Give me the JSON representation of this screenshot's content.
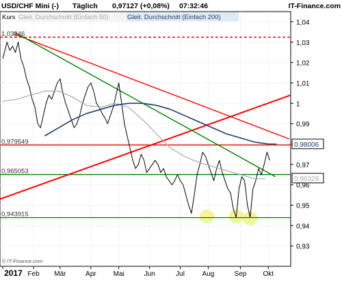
{
  "header": {
    "instrument": "USD/CHF Mini (-)",
    "interval": "Täglich",
    "last_value": "0,97127",
    "change": "(+0,08%)",
    "time": "07:32:46",
    "brand": "IT-Finance.com"
  },
  "legend": {
    "kurs": "Kurs",
    "sma50": "Gleit. Durchschnitt (Einfach 50)",
    "sma200": "Gleit. Durchschnitt (Einfach 200)"
  },
  "footer": {
    "copyright": "© IT-Finance.com",
    "year": "2017"
  },
  "colors": {
    "price": "#000000",
    "sma50": "#a9a9a9",
    "sma200": "#1f3a6e",
    "downtrend_red": "#ff0000",
    "uptrend_red": "#ff0000",
    "green_trend": "#008000",
    "horizontal_red": "#ff0000",
    "horizontal_green": "#008000",
    "dashed_top": "#cc0000",
    "highlight": "#f2f28a",
    "axis_bg": "#ffffff",
    "current_label_box": "#000000"
  },
  "chart_data": {
    "type": "line",
    "title": "USD/CHF Mini (-)",
    "xlabel": "",
    "ylabel": "",
    "ylim": [
      0.92,
      1.045
    ],
    "yticks": [
      {
        "v": 1.04,
        "label": "1,04"
      },
      {
        "v": 1.03,
        "label": "1,03"
      },
      {
        "v": 1.02,
        "label": "1,02"
      },
      {
        "v": 1.01,
        "label": "1,01"
      },
      {
        "v": 1.0,
        "label": "1"
      },
      {
        "v": 0.99,
        "label": "0,99"
      },
      {
        "v": 0.98,
        "label": "0,98"
      },
      {
        "v": 0.97,
        "label": "0,97"
      },
      {
        "v": 0.96,
        "label": "0,96"
      },
      {
        "v": 0.95,
        "label": "0,95"
      },
      {
        "v": 0.94,
        "label": "0,94"
      },
      {
        "v": 0.93,
        "label": "0,93"
      }
    ],
    "xticks": [
      {
        "t": 0,
        "label": "2017"
      },
      {
        "t": 22,
        "label": "Feb"
      },
      {
        "t": 41,
        "label": "Mär"
      },
      {
        "t": 63,
        "label": "Apr"
      },
      {
        "t": 83,
        "label": "Mai"
      },
      {
        "t": 105,
        "label": "Jun"
      },
      {
        "t": 127,
        "label": "Jul"
      },
      {
        "t": 147,
        "label": "Aug"
      },
      {
        "t": 170,
        "label": "Sep"
      },
      {
        "t": 190,
        "label": "Okt"
      }
    ],
    "t_range": [
      -2,
      206
    ],
    "current_values": [
      {
        "name": "sma200",
        "value": 0.98006,
        "label": "0,98006"
      },
      {
        "name": "sma50",
        "value": 0.96329,
        "label": "0,96329"
      }
    ],
    "levels": [
      {
        "value": 1.03246,
        "label": "1,03246",
        "style": "dashed-red"
      },
      {
        "value": 0.979549,
        "label": "0,979549",
        "style": "red"
      },
      {
        "value": 0.965053,
        "label": "0,965053",
        "style": "green"
      },
      {
        "value": 0.943915,
        "label": "0,943915",
        "style": "green"
      }
    ],
    "trendlines": [
      {
        "name": "downtrend-red",
        "t0": 8,
        "v0": 1.034,
        "t1": 205,
        "v1": 0.9825
      },
      {
        "name": "uptrend-red",
        "t0": -2,
        "v0": 0.953,
        "t1": 206,
        "v1": 1.004
      },
      {
        "name": "green-trend",
        "t0": 8,
        "v0": 1.035,
        "t1": 195,
        "v1": 0.964
      }
    ],
    "highlights": [
      {
        "t": 146,
        "v": 0.9445
      },
      {
        "t": 167,
        "v": 0.9445
      },
      {
        "t": 177,
        "v": 0.9435
      }
    ],
    "series": [
      {
        "name": "Kurs",
        "x": [
          0,
          3,
          5,
          7,
          9,
          11,
          13,
          15,
          17,
          19,
          21,
          23,
          25,
          27,
          29,
          31,
          33,
          35,
          37,
          39,
          41,
          43,
          45,
          47,
          49,
          51,
          53,
          55,
          57,
          59,
          61,
          63,
          65,
          67,
          69,
          71,
          73,
          75,
          77,
          79,
          81,
          83,
          85,
          87,
          89,
          91,
          93,
          95,
          97,
          99,
          101,
          103,
          105,
          107,
          109,
          111,
          113,
          115,
          117,
          119,
          121,
          123,
          125,
          127,
          129,
          131,
          133,
          135,
          137,
          139,
          141,
          143,
          145,
          147,
          149,
          151,
          153,
          155,
          157,
          159,
          161,
          163,
          165,
          167,
          169,
          171,
          173,
          175,
          177,
          179,
          181,
          183,
          185,
          187,
          189,
          191
        ],
        "values": [
          1.022,
          1.03,
          1.026,
          1.028,
          1.025,
          1.03,
          1.022,
          1.018,
          1.012,
          1.008,
          1.002,
          0.998,
          0.99,
          0.988,
          0.994,
          1.0,
          1.004,
          1.002,
          1.006,
          1.01,
          1.012,
          1.005,
          1.0,
          0.996,
          0.992,
          0.988,
          0.99,
          0.994,
          1.0,
          1.004,
          1.008,
          1.01,
          1.006,
          1.0,
          0.998,
          0.995,
          0.993,
          0.99,
          0.994,
          0.998,
          1.004,
          1.01,
          1.0,
          0.99,
          0.984,
          0.978,
          0.972,
          0.968,
          0.97,
          0.975,
          0.972,
          0.966,
          0.968,
          0.97,
          0.972,
          0.97,
          0.966,
          0.968,
          0.964,
          0.962,
          0.96,
          0.962,
          0.965,
          0.962,
          0.96,
          0.955,
          0.95,
          0.946,
          0.955,
          0.965,
          0.97,
          0.976,
          0.974,
          0.97,
          0.966,
          0.962,
          0.968,
          0.972,
          0.966,
          0.962,
          0.958,
          0.956,
          0.948,
          0.944,
          0.958,
          0.964,
          0.962,
          0.95,
          0.944,
          0.958,
          0.962,
          0.968,
          0.965,
          0.97,
          0.976,
          0.972
        ]
      },
      {
        "name": "Gleit. Durchschnitt (Einfach 50)",
        "x": [
          0,
          10,
          20,
          30,
          40,
          50,
          60,
          70,
          80,
          90,
          100,
          110,
          120,
          130,
          140,
          150,
          160,
          170,
          180,
          188
        ],
        "values": [
          1.001,
          1.002,
          1.004,
          1.006,
          1.006,
          1.003,
          0.999,
          0.998,
          1.0,
          0.998,
          0.992,
          0.985,
          0.978,
          0.974,
          0.971,
          0.969,
          0.967,
          0.965,
          0.963,
          0.963
        ]
      },
      {
        "name": "Gleit. Durchschnitt (Einfach 200)",
        "x": [
          30,
          40,
          50,
          60,
          70,
          80,
          90,
          100,
          110,
          120,
          130,
          140,
          150,
          160,
          170,
          180,
          190,
          196
        ],
        "values": [
          0.984,
          0.988,
          0.992,
          0.995,
          0.997,
          0.999,
          1.0,
          1.0,
          0.999,
          0.997,
          0.994,
          0.991,
          0.988,
          0.985,
          0.983,
          0.981,
          0.98,
          0.98
        ]
      }
    ]
  }
}
